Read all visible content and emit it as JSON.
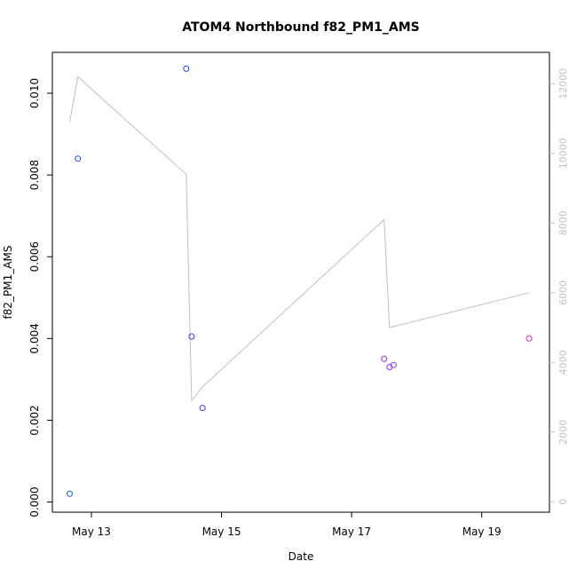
{
  "chart_data": {
    "type": "scatter",
    "title": "ATOM4 Northbound f82_PM1_AMS",
    "xlabel": "Date",
    "ylabel": "f82_PM1_AMS",
    "x_ticks": [
      "May 13",
      "May 15",
      "May 17",
      "May 19"
    ],
    "y_ticks": [
      "0.000",
      "0.002",
      "0.004",
      "0.006",
      "0.008",
      "0.010"
    ],
    "y2_ticks": [
      "0",
      "2000",
      "4000",
      "6000",
      "8000",
      "10000",
      "12000"
    ],
    "colors": {
      "line": "#c0c0c0",
      "right_axis": "#bfbfbf",
      "frame": "#000000"
    },
    "series": [
      {
        "kind": "points",
        "axis": "left",
        "points": [
          {
            "x": "2018-05-12T16:00",
            "y": 0.0002,
            "color": "#1a56e0"
          },
          {
            "x": "2018-05-12T19:00",
            "y": 0.0084,
            "color": "#1a56e0"
          },
          {
            "x": "2018-05-14T11:00",
            "y": 0.0106,
            "color": "#2a3fe0"
          },
          {
            "x": "2018-05-14T13:00",
            "y": 0.00405,
            "color": "#3a3fe0"
          },
          {
            "x": "2018-05-14T17:00",
            "y": 0.0023,
            "color": "#3a3fe0"
          },
          {
            "x": "2018-05-17T12:00",
            "y": 0.0035,
            "color": "#8a2be2"
          },
          {
            "x": "2018-05-17T14:00",
            "y": 0.0033,
            "color": "#8a2be2"
          },
          {
            "x": "2018-05-17T15:30",
            "y": 0.00335,
            "color": "#8a2be2"
          },
          {
            "x": "2018-05-19T17:30",
            "y": 0.004,
            "color": "#e020b0"
          }
        ]
      },
      {
        "kind": "line",
        "axis": "right",
        "points": [
          {
            "x": "2018-05-12T16:00",
            "y": 10900
          },
          {
            "x": "2018-05-12T19:00",
            "y": 12200
          },
          {
            "x": "2018-05-14T11:00",
            "y": 9400
          },
          {
            "x": "2018-05-14T13:00",
            "y": 2900
          },
          {
            "x": "2018-05-14T17:00",
            "y": 3300
          },
          {
            "x": "2018-05-17T12:00",
            "y": 8100
          },
          {
            "x": "2018-05-17T14:00",
            "y": 5000
          },
          {
            "x": "2018-05-19T17:30",
            "y": 6000
          }
        ]
      }
    ],
    "xlim": [
      "2018-05-12T09:36",
      "2018-05-20T01:00"
    ],
    "ylim": [
      -0.00025,
      0.011
    ],
    "y2lim": [
      -300,
      12900
    ],
    "grid": false,
    "legend": "none"
  }
}
